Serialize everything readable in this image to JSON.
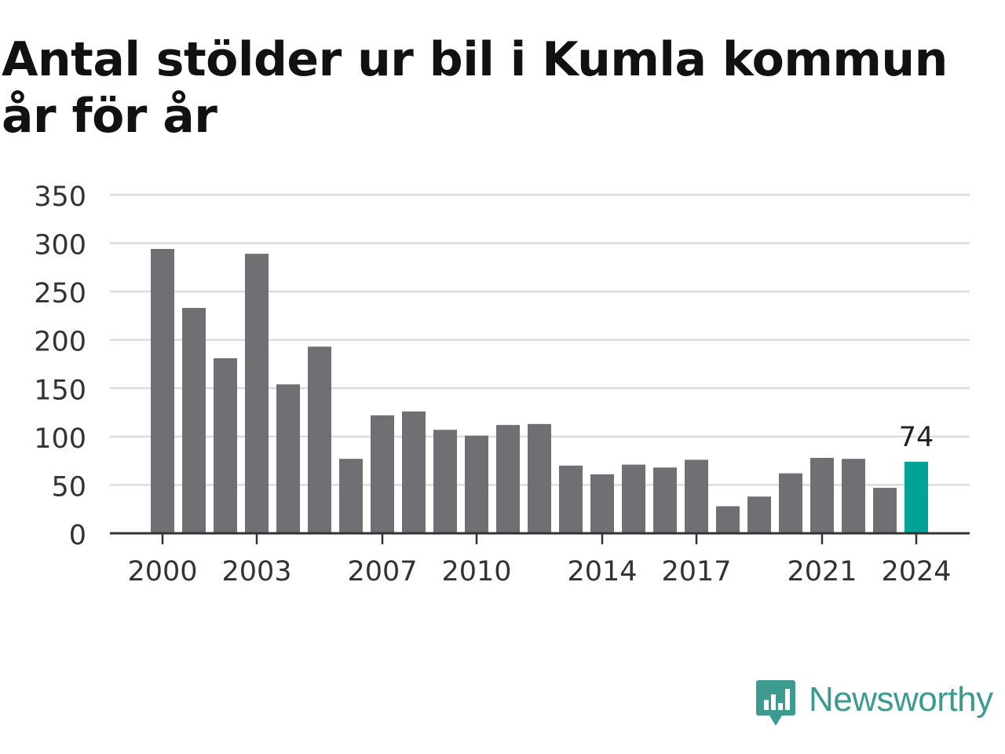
{
  "title": "Antal stölder ur bil i Kumla kommun år för år",
  "brand": {
    "name": "Newsworthy",
    "logo_icon": "bar-chart-speech-bubble-icon"
  },
  "colors": {
    "bar": "#707074",
    "highlight": "#00a396",
    "grid": "#dcdcdc",
    "axis": "#333333",
    "tick_text": "#333333",
    "title": "#111111",
    "brand": "#3c9a8e"
  },
  "chart_data": {
    "type": "bar",
    "title": "Antal stölder ur bil i Kumla kommun år för år",
    "xlabel": "",
    "ylabel": "",
    "categories": [
      2000,
      2001,
      2002,
      2003,
      2004,
      2005,
      2006,
      2007,
      2008,
      2009,
      2010,
      2011,
      2012,
      2013,
      2014,
      2015,
      2016,
      2017,
      2018,
      2019,
      2020,
      2021,
      2022,
      2023,
      2024
    ],
    "values": [
      294,
      233,
      181,
      289,
      154,
      193,
      77,
      122,
      126,
      107,
      101,
      112,
      113,
      70,
      61,
      71,
      68,
      76,
      28,
      38,
      62,
      78,
      77,
      47,
      74
    ],
    "ylim": [
      0,
      350
    ],
    "yticks": [
      0,
      50,
      100,
      150,
      200,
      250,
      300,
      350
    ],
    "xtick_labels": [
      "2000",
      "2003",
      "2007",
      "2010",
      "2014",
      "2017",
      "2021",
      "2024"
    ],
    "highlight_category": 2024,
    "annotation": "74",
    "grid": true
  }
}
